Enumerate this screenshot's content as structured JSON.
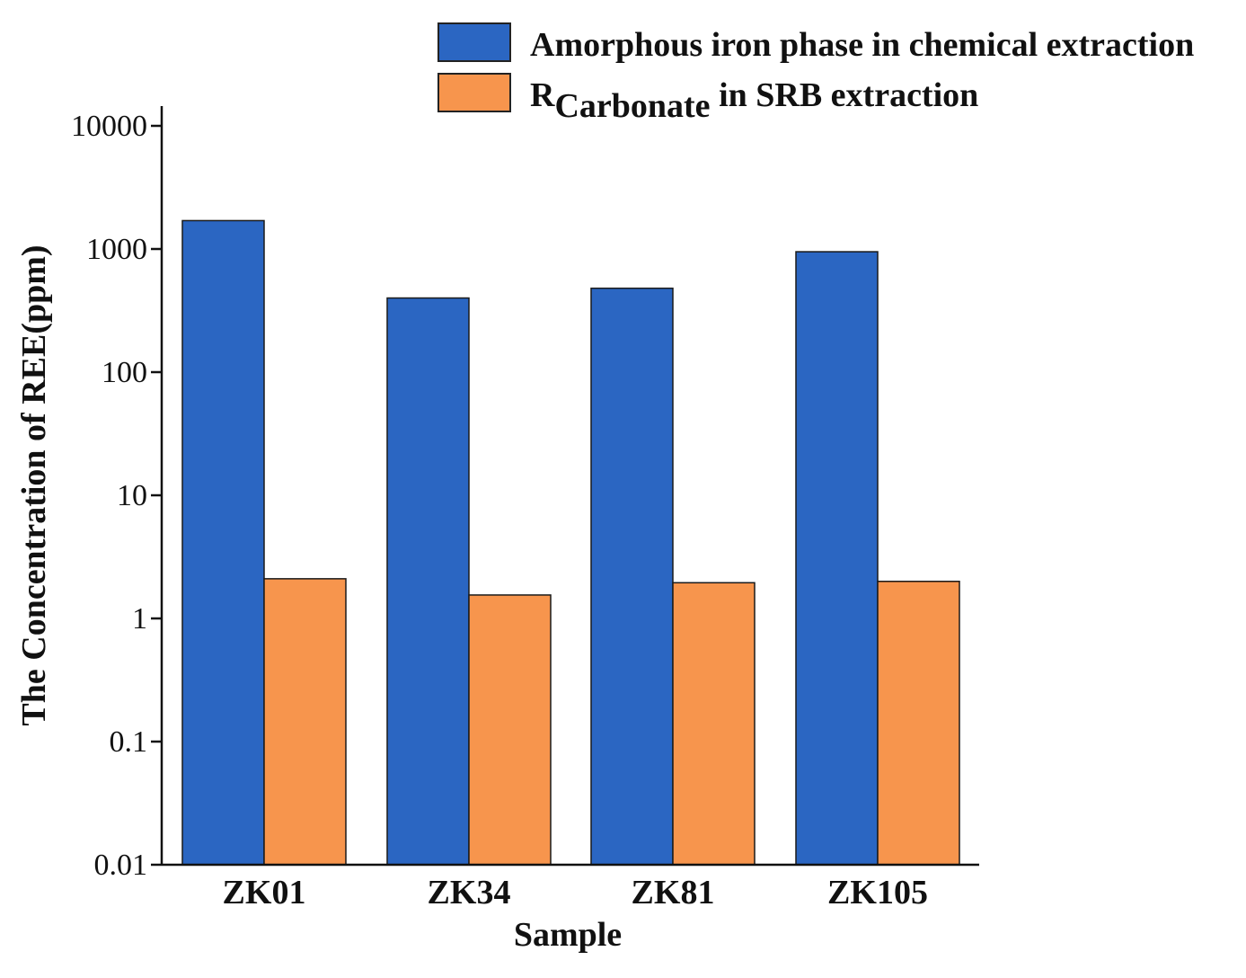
{
  "chart_data": {
    "type": "bar",
    "title": "",
    "xlabel": "Sample",
    "ylabel": "The Concentration of REE(ppm)",
    "yscale": "log",
    "ylim": [
      0.01,
      10000
    ],
    "yticks": [
      "10000",
      "1000",
      "100",
      "10",
      "1",
      "0.1",
      "0.01"
    ],
    "categories": [
      "ZK01",
      "ZK34",
      "ZK81",
      "ZK105"
    ],
    "legend_position": "top-right",
    "series": [
      {
        "name": "Amorphous iron phase in chemical extraction",
        "color": "#2b66c2",
        "values": [
          1700,
          400,
          480,
          950
        ]
      },
      {
        "name_main": "R",
        "name_sub": "Carbonate",
        "name_rest": " in SRB extraction",
        "color": "#f7954d",
        "values": [
          2.1,
          1.55,
          1.95,
          2.0
        ]
      }
    ]
  }
}
